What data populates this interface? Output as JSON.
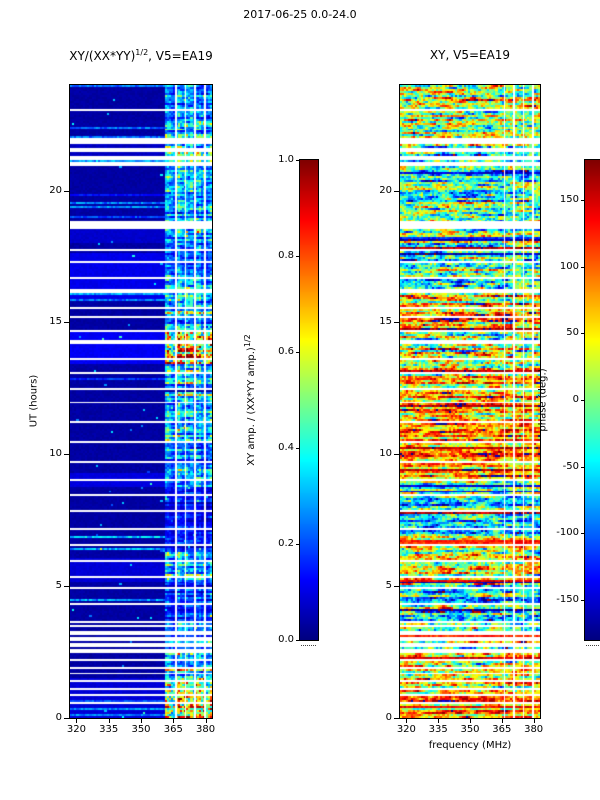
{
  "header": {
    "title": "2017-06-25 0.0-24.0"
  },
  "time_gaps_hours": [
    [
      0.55,
      0.63
    ],
    [
      0.82,
      0.9
    ],
    [
      1.05,
      1.12
    ],
    [
      1.35,
      1.42
    ],
    [
      1.62,
      1.7
    ],
    [
      1.9,
      1.98
    ],
    [
      2.18,
      2.26
    ],
    [
      2.45,
      2.62
    ],
    [
      2.72,
      2.82
    ],
    [
      2.95,
      3.06
    ],
    [
      3.16,
      3.3
    ],
    [
      3.42,
      3.52
    ],
    [
      3.62,
      3.7
    ],
    [
      4.3,
      4.38
    ],
    [
      4.85,
      4.93
    ],
    [
      5.3,
      5.38
    ],
    [
      5.9,
      5.98
    ],
    [
      6.5,
      6.58
    ],
    [
      7.1,
      7.18
    ],
    [
      7.8,
      7.88
    ],
    [
      8.42,
      8.5
    ],
    [
      9.02,
      9.1
    ],
    [
      9.7,
      9.78
    ],
    [
      10.4,
      10.48
    ],
    [
      11.2,
      11.28
    ],
    [
      11.9,
      11.98
    ],
    [
      12.42,
      12.55
    ],
    [
      13.02,
      13.1
    ],
    [
      13.55,
      13.63
    ],
    [
      14.15,
      14.3
    ],
    [
      14.6,
      14.72
    ],
    [
      15.12,
      15.2
    ],
    [
      15.52,
      15.6
    ],
    [
      16.12,
      16.26
    ],
    [
      16.62,
      16.7
    ],
    [
      17.22,
      17.3
    ],
    [
      17.72,
      17.8
    ],
    [
      18.55,
      18.8
    ],
    [
      20.92,
      21.06
    ],
    [
      21.18,
      21.32
    ],
    [
      21.45,
      21.6
    ],
    [
      21.72,
      21.98
    ],
    [
      23.0,
      23.08
    ]
  ],
  "chart_data": [
    {
      "type": "heatmap",
      "title": "XY/(XX*YY)^(1/2), V5=EA19",
      "title_base": "XY/(XX*YY)",
      "title_sup": "1/2",
      "title_rest": ", V5=EA19",
      "xlabel": "",
      "ylabel": "UT (hours)",
      "x_range": [
        317,
        383
      ],
      "y_range": [
        0,
        24
      ],
      "x_ticks": [
        320,
        335,
        350,
        365,
        380
      ],
      "y_ticks": [
        0,
        5,
        10,
        15,
        20
      ],
      "colormap": "jet",
      "value_range": [
        0,
        1
      ],
      "colorbar_label": "XY amp. / (XX*YY amp.)^(1/2)",
      "colorbar_label_base": "XY amp. / (XX*YY amp.)",
      "colorbar_label_sup": "1/2",
      "colorbar_ticks": [
        1.0,
        0.8,
        0.6,
        0.4,
        0.2,
        0.0
      ],
      "background_level": 0.035,
      "band_range_mhz": [
        361.5,
        382.5
      ],
      "flagged_channels_mhz": [
        [
          365.8,
          366.6
        ],
        [
          370.3,
          371.1
        ],
        [
          374.8,
          375.6
        ],
        [
          379.3,
          380.1
        ]
      ],
      "activity_segments": [
        [
          0,
          0.55,
          0.9
        ],
        [
          0.63,
          1.5,
          0.75
        ],
        [
          1.5,
          2.45,
          0.55
        ],
        [
          2.6,
          3.7,
          0.4
        ],
        [
          3.7,
          5.2,
          0.28
        ],
        [
          5.2,
          6.3,
          0.5
        ],
        [
          6.3,
          8.8,
          0.22
        ],
        [
          8.8,
          10.5,
          0.42
        ],
        [
          10.5,
          12.4,
          0.55
        ],
        [
          12.55,
          13.4,
          0.45
        ],
        [
          13.4,
          14.6,
          0.92
        ],
        [
          14.6,
          16.1,
          0.5
        ],
        [
          16.1,
          18.0,
          0.42
        ],
        [
          18.0,
          20.9,
          0.48
        ],
        [
          21.0,
          22.6,
          0.55
        ],
        [
          22.6,
          24,
          0.45
        ]
      ],
      "background_segments": [
        [
          0,
          1.5,
          0.05
        ],
        [
          5.2,
          6.1,
          0.05
        ],
        [
          8.8,
          9.3,
          0.06
        ],
        [
          13.4,
          14.6,
          0.08
        ],
        [
          15.9,
          17.6,
          0.07
        ],
        [
          18.0,
          18.55,
          0.04
        ],
        [
          21.0,
          21.8,
          0.03
        ]
      ]
    },
    {
      "type": "heatmap",
      "title": "XY, V5=EA19",
      "xlabel": "frequency (MHz)",
      "ylabel": "",
      "x_range": [
        317,
        383
      ],
      "y_range": [
        0,
        24
      ],
      "x_ticks": [
        320,
        335,
        350,
        365,
        380
      ],
      "y_ticks": [
        0,
        5,
        10,
        15,
        20
      ],
      "colormap": "jet",
      "value_range": [
        -180,
        180
      ],
      "colorbar_label": "phase (deg.)",
      "colorbar_ticks": [
        150,
        100,
        50,
        0,
        -50,
        -100,
        -150
      ],
      "phase_segments": [
        [
          0,
          1.0,
          70,
          110
        ],
        [
          1.0,
          2.45,
          35,
          150
        ],
        [
          2.6,
          3.7,
          0,
          160
        ],
        [
          3.7,
          5.0,
          -45,
          140
        ],
        [
          5.0,
          7.0,
          40,
          145
        ],
        [
          7.0,
          9.0,
          -55,
          135
        ],
        [
          9.0,
          11.2,
          85,
          115
        ],
        [
          11.2,
          13.0,
          65,
          135
        ],
        [
          13.0,
          14.6,
          25,
          160
        ],
        [
          14.6,
          16.1,
          45,
          145
        ],
        [
          16.1,
          17.6,
          -20,
          155
        ],
        [
          17.6,
          19.0,
          10,
          150
        ],
        [
          19.0,
          21.6,
          -30,
          145
        ],
        [
          21.6,
          24,
          15,
          160
        ]
      ]
    }
  ]
}
